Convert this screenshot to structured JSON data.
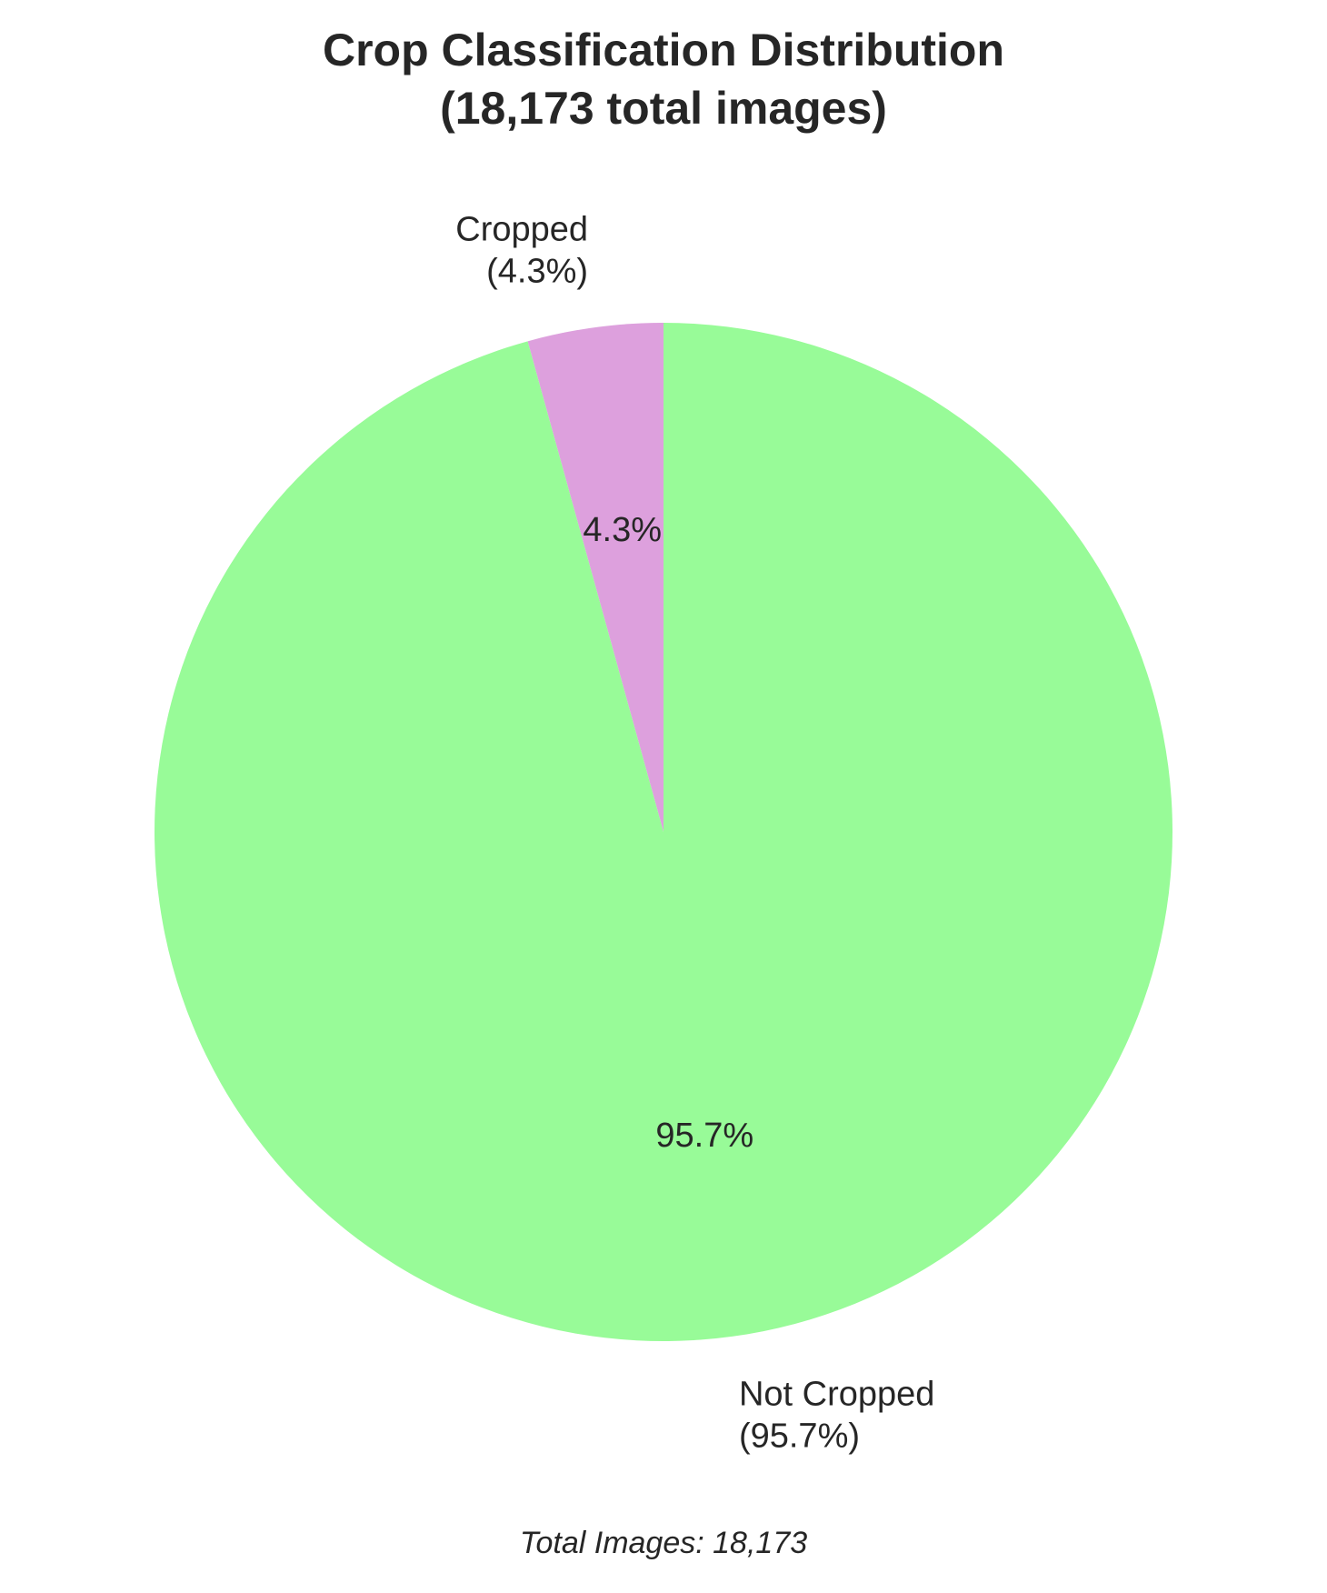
{
  "chart_data": {
    "type": "pie",
    "title_lines": [
      "Crop Classification Distribution",
      "(18,173 total images)"
    ],
    "slices": [
      {
        "label": "Cropped",
        "label_pct": "(4.3%)",
        "value": 4.3,
        "autopct": "4.3%",
        "color": "#dda0dd"
      },
      {
        "label": "Not Cropped",
        "label_pct": "(95.7%)",
        "value": 95.7,
        "autopct": "95.7%",
        "color": "#98fb98"
      }
    ],
    "start_angle_deg": 90,
    "direction": "counterclockwise",
    "footer": "Total Images: 18,173"
  }
}
